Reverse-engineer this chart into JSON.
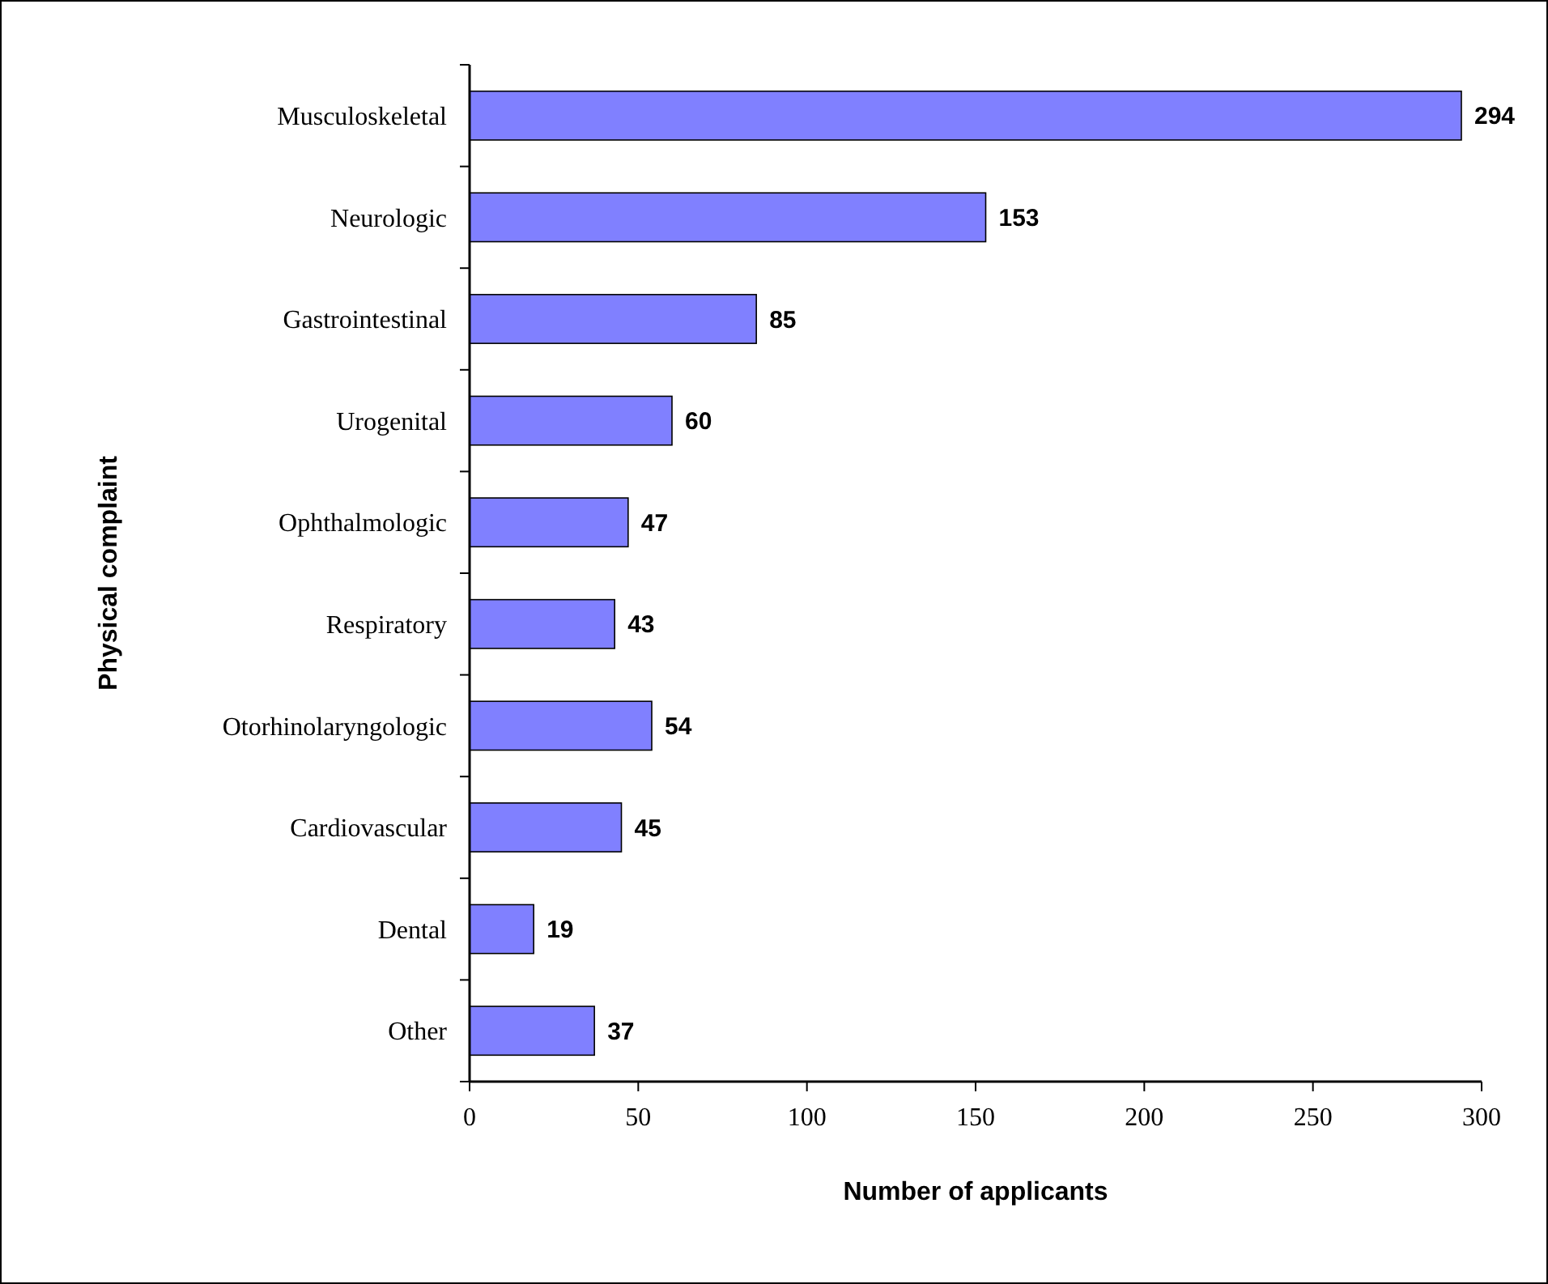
{
  "chart_data": {
    "type": "bar",
    "orientation": "horizontal",
    "xlabel": "Number of applicants",
    "ylabel": "Physical complaint",
    "categories": [
      "Musculoskeletal",
      "Neurologic",
      "Gastrointestinal",
      "Urogenital",
      "Ophthalmologic",
      "Respiratory",
      "Otorhinolaryngologic",
      "Cardiovascular",
      "Dental",
      "Other"
    ],
    "values": [
      294,
      153,
      85,
      60,
      47,
      43,
      54,
      45,
      19,
      37
    ],
    "color": "#8080ff",
    "xlim": [
      0,
      300
    ],
    "xticks": [
      0,
      50,
      100,
      150,
      200,
      250,
      300
    ],
    "grid": false,
    "data_labels": true
  }
}
